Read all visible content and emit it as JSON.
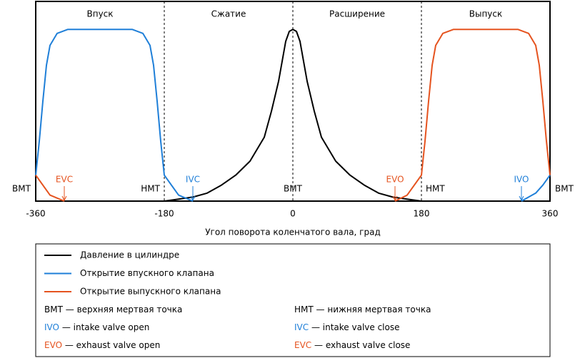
{
  "chart_data": {
    "type": "line",
    "xlabel": "Угол поворота коленчатого вала, град",
    "xlim": [
      -360,
      360
    ],
    "ylim": [
      0,
      1
    ],
    "xticks": [
      -360,
      -180,
      0,
      180,
      360
    ],
    "phases": [
      {
        "label": "Впуск",
        "from": -360,
        "to": -180
      },
      {
        "label": "Сжатие",
        "from": -180,
        "to": 0
      },
      {
        "label": "Расширение",
        "from": 0,
        "to": 180
      },
      {
        "label": "Выпуск",
        "from": 180,
        "to": 360
      }
    ],
    "dead_centers": [
      {
        "label": "ВМТ",
        "x": -360
      },
      {
        "label": "НМТ",
        "x": -180
      },
      {
        "label": "ВМТ",
        "x": 0
      },
      {
        "label": "НМТ",
        "x": 180
      },
      {
        "label": "ВМТ",
        "x": 360
      }
    ],
    "markers": [
      {
        "label": "EVC",
        "x": -320,
        "color": "#e5531f"
      },
      {
        "label": "IVC",
        "x": -140,
        "color": "#1f7fd8"
      },
      {
        "label": "EVO",
        "x": 143,
        "color": "#e5531f"
      },
      {
        "label": "IVO",
        "x": 320,
        "color": "#1f7fd8"
      }
    ],
    "series": [
      {
        "name": "Давление в цилиндре",
        "color": "#000000",
        "x": [
          -180,
          -160,
          -140,
          -120,
          -100,
          -80,
          -60,
          -40,
          -30,
          -20,
          -10,
          -5,
          0,
          5,
          10,
          20,
          30,
          40,
          60,
          80,
          100,
          120,
          140,
          160,
          180
        ],
        "values": [
          0,
          0.01,
          0.02,
          0.04,
          0.08,
          0.13,
          0.2,
          0.32,
          0.45,
          0.6,
          0.8,
          0.85,
          0.86,
          0.85,
          0.8,
          0.6,
          0.45,
          0.32,
          0.2,
          0.13,
          0.08,
          0.04,
          0.02,
          0.01,
          0
        ]
      },
      {
        "name": "Открытие впускного клапана",
        "color": "#1f7fd8",
        "x": [
          -360,
          -355,
          -350,
          -345,
          -340,
          -330,
          -315,
          -225,
          -210,
          -200,
          -195,
          -190,
          -185,
          -180,
          -160,
          -140,
          0,
          320,
          340,
          350,
          360
        ],
        "values": [
          0.13,
          0.3,
          0.5,
          0.68,
          0.78,
          0.84,
          0.86,
          0.86,
          0.84,
          0.78,
          0.68,
          0.5,
          0.3,
          0.13,
          0.03,
          0,
          null,
          0,
          0.04,
          0.08,
          0.13
        ]
      },
      {
        "name": "Открытие выпускного клапана",
        "color": "#e5531f",
        "x": [
          -360,
          -340,
          -320,
          0,
          143,
          160,
          180,
          185,
          190,
          195,
          200,
          210,
          225,
          315,
          330,
          340,
          345,
          350,
          355,
          360
        ],
        "values": [
          0.13,
          0.03,
          0,
          null,
          0,
          0.03,
          0.13,
          0.3,
          0.5,
          0.68,
          0.78,
          0.84,
          0.86,
          0.86,
          0.84,
          0.78,
          0.68,
          0.5,
          0.3,
          0.13
        ]
      }
    ],
    "legend_notes": [
      {
        "abbr": "ВМТ",
        "text": "— верхняя мертвая точка",
        "color": "#000000"
      },
      {
        "abbr": "НМТ",
        "text": "— нижняя мертвая точка",
        "color": "#000000"
      },
      {
        "abbr": "IVO",
        "text": "— intake valve open",
        "color": "#1f7fd8"
      },
      {
        "abbr": "IVC",
        "text": "— intake valve close",
        "color": "#1f7fd8"
      },
      {
        "abbr": "EVO",
        "text": "— exhaust valve open",
        "color": "#e5531f"
      },
      {
        "abbr": "EVC",
        "text": "— exhaust valve close",
        "color": "#e5531f"
      }
    ]
  }
}
